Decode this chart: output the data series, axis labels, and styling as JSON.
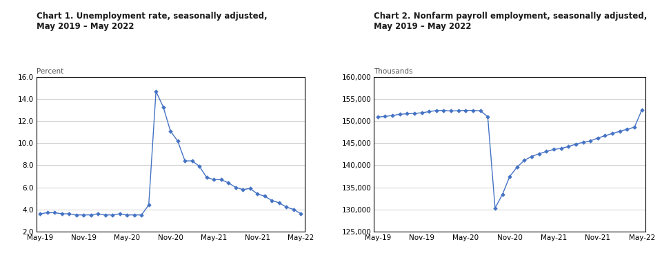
{
  "chart1": {
    "title": "Chart 1. Unemployment rate, seasonally adjusted,\nMay 2019 – May 2022",
    "ylabel": "Percent",
    "ylim": [
      2.0,
      16.0
    ],
    "yticks": [
      2.0,
      4.0,
      6.0,
      8.0,
      10.0,
      12.0,
      14.0,
      16.0
    ],
    "unemp_data": [
      3.6,
      3.7,
      3.7,
      3.6,
      3.6,
      3.5,
      3.5,
      3.5,
      3.6,
      3.5,
      3.5,
      3.6,
      3.5,
      3.5,
      3.5,
      4.4,
      14.7,
      13.3,
      11.1,
      10.2,
      8.4,
      8.4,
      7.9,
      6.9,
      6.7,
      6.7,
      6.4,
      6.0,
      5.8,
      5.9,
      5.4,
      5.2,
      4.8,
      4.6,
      4.2,
      4.0,
      3.6
    ],
    "line_color": "#4472C4",
    "marker": "D",
    "markersize": 2.8
  },
  "chart2": {
    "title": "Chart 2. Nonfarm payroll employment, seasonally adjusted,\nMay 2019 – May 2022",
    "ylabel": "Thousands",
    "ylim": [
      125000,
      160000
    ],
    "yticks": [
      125000,
      130000,
      135000,
      140000,
      145000,
      150000,
      155000,
      160000
    ],
    "nonfarm_data": [
      150924,
      151098,
      151295,
      151571,
      151695,
      151779,
      151913,
      152175,
      152425,
      152448,
      152325,
      152384,
      152463,
      152438,
      152369,
      151029,
      130303,
      133393,
      137476,
      139593,
      141145,
      142016,
      142614,
      143145,
      143605,
      143822,
      144254,
      144800,
      145207,
      145536,
      146187,
      146713,
      147224,
      147712,
      148191,
      148636,
      152523
    ],
    "line_color": "#4472C4",
    "marker": "D",
    "markersize": 2.8
  },
  "xtick_labels": [
    "May-19",
    "Nov-19",
    "May-20",
    "Nov-20",
    "May-21",
    "Nov-21",
    "May-22"
  ],
  "xtick_positions": [
    0,
    6,
    12,
    18,
    24,
    30,
    36
  ],
  "n_months": 37,
  "background_color": "#ffffff",
  "grid_color": "#bbbbbb",
  "title_fontsize": 8.5,
  "ylabel_fontsize": 7.5,
  "tick_fontsize": 7.5,
  "title_color": "#1a1a1a",
  "ylabel_color": "#555555"
}
